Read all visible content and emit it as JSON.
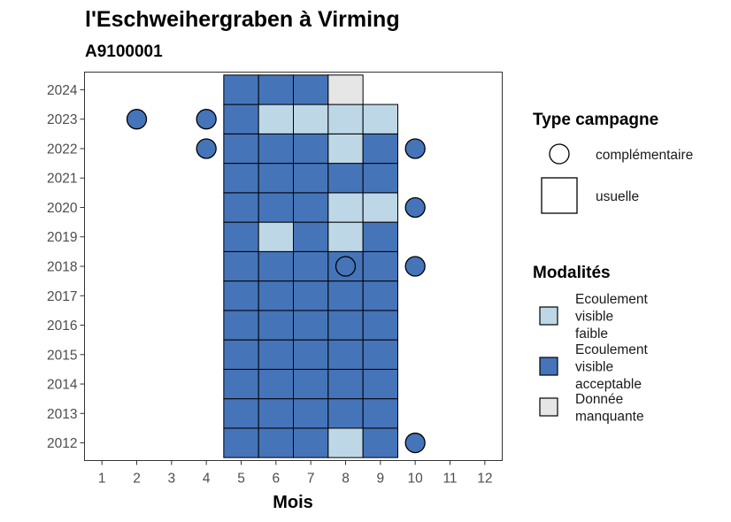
{
  "chart_data": {
    "type": "heatmap",
    "title": "l'Eschweihergraben à Virming",
    "subtitle": "A9100001",
    "xlabel": "Mois",
    "ylabel": "",
    "x_ticks": [
      "1",
      "2",
      "3",
      "4",
      "5",
      "6",
      "7",
      "8",
      "9",
      "10",
      "11",
      "12"
    ],
    "y_ticks": [
      "2012",
      "2013",
      "2014",
      "2015",
      "2016",
      "2017",
      "2018",
      "2019",
      "2020",
      "2021",
      "2022",
      "2023",
      "2024"
    ],
    "xlim": [
      0.5,
      12.5
    ],
    "ylim": [
      2011.4,
      2024.6
    ],
    "grid": false,
    "legend_position": "right",
    "colors": {
      "faible": "#bdd7e7",
      "acceptable": "#4574b9",
      "manquante": "#e6e6e6",
      "border": "#000000",
      "tick": "#4d4d4d"
    },
    "legend_type": {
      "title": "Type campagne",
      "items": [
        {
          "shape": "circle",
          "label": "complémentaire"
        },
        {
          "shape": "square",
          "label": "usuelle"
        }
      ]
    },
    "legend_modalites": {
      "title": "Modalités",
      "items": [
        {
          "key": "faible",
          "lines": [
            "Ecoulement",
            "visible",
            "faible"
          ]
        },
        {
          "key": "acceptable",
          "lines": [
            "Ecoulement",
            "visible",
            "acceptable"
          ]
        },
        {
          "key": "manquante",
          "lines": [
            "Donnée",
            "manquante"
          ]
        }
      ]
    },
    "usuelle": [
      {
        "year": 2012,
        "months": [
          "a",
          "a",
          "a",
          "f",
          "a"
        ]
      },
      {
        "year": 2013,
        "months": [
          "a",
          "a",
          "a",
          "a",
          "a"
        ]
      },
      {
        "year": 2014,
        "months": [
          "a",
          "a",
          "a",
          "a",
          "a"
        ]
      },
      {
        "year": 2015,
        "months": [
          "a",
          "a",
          "a",
          "a",
          "a"
        ]
      },
      {
        "year": 2016,
        "months": [
          "a",
          "a",
          "a",
          "a",
          "a"
        ]
      },
      {
        "year": 2017,
        "months": [
          "a",
          "a",
          "a",
          "a",
          "a"
        ]
      },
      {
        "year": 2018,
        "months": [
          "a",
          "a",
          "a",
          "a",
          "a"
        ]
      },
      {
        "year": 2019,
        "months": [
          "a",
          "f",
          "a",
          "f",
          "a"
        ]
      },
      {
        "year": 2020,
        "months": [
          "a",
          "a",
          "a",
          "f",
          "f"
        ]
      },
      {
        "year": 2021,
        "months": [
          "a",
          "a",
          "a",
          "a",
          "a"
        ]
      },
      {
        "year": 2022,
        "months": [
          "a",
          "a",
          "a",
          "f",
          "a"
        ]
      },
      {
        "year": 2023,
        "months": [
          "a",
          "f",
          "f",
          "f",
          "f"
        ]
      },
      {
        "year": 2024,
        "months": [
          "a",
          "a",
          "a",
          "m",
          null
        ]
      }
    ],
    "usuelle_first_month": 5,
    "complementaire": [
      {
        "year": 2012,
        "month": 10,
        "value": "acceptable"
      },
      {
        "year": 2018,
        "month": 8,
        "value": "acceptable"
      },
      {
        "year": 2018,
        "month": 10,
        "value": "acceptable"
      },
      {
        "year": 2020,
        "month": 10,
        "value": "acceptable"
      },
      {
        "year": 2022,
        "month": 4,
        "value": "acceptable"
      },
      {
        "year": 2022,
        "month": 10,
        "value": "acceptable"
      },
      {
        "year": 2023,
        "month": 2,
        "value": "acceptable"
      },
      {
        "year": 2023,
        "month": 4,
        "value": "acceptable"
      }
    ]
  }
}
